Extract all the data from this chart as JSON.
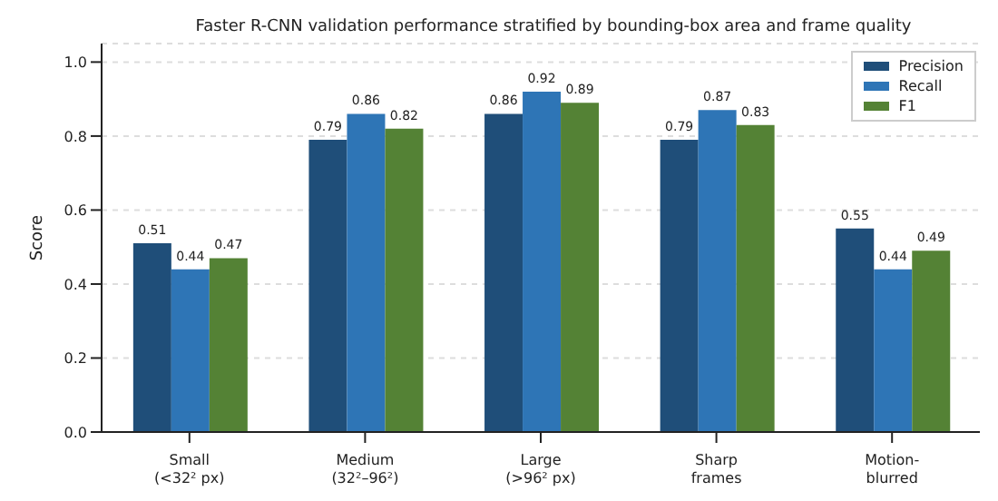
{
  "chart_data": {
    "type": "bar",
    "title": "Faster R-CNN validation performance stratified by bounding-box area and frame quality",
    "ylabel": "Score",
    "categories": [
      "Small\n(<32² px)",
      "Medium\n(32²–96²)",
      "Large\n(>96² px)",
      "Sharp\nframes",
      "Motion-\nblurred"
    ],
    "series": [
      {
        "name": "Precision",
        "color": "#1f4e79",
        "values": [
          0.51,
          0.79,
          0.86,
          0.79,
          0.55
        ]
      },
      {
        "name": "Recall",
        "color": "#2e75b6",
        "values": [
          0.44,
          0.86,
          0.92,
          0.87,
          0.44
        ]
      },
      {
        "name": "F1",
        "color": "#548235",
        "values": [
          0.47,
          0.82,
          0.89,
          0.83,
          0.49
        ]
      }
    ],
    "ylim": [
      0,
      1.05
    ],
    "yticks": [
      {
        "value": 0,
        "label": "0.0"
      },
      {
        "value": 0.2,
        "label": "0.2"
      },
      {
        "value": 0.4,
        "label": "0.4"
      },
      {
        "value": 0.6,
        "label": "0.6"
      },
      {
        "value": 0.8,
        "label": "0.8"
      },
      {
        "value": 1,
        "label": "1.0"
      }
    ],
    "grid": "y",
    "legend": "top right",
    "data_labels": true
  }
}
